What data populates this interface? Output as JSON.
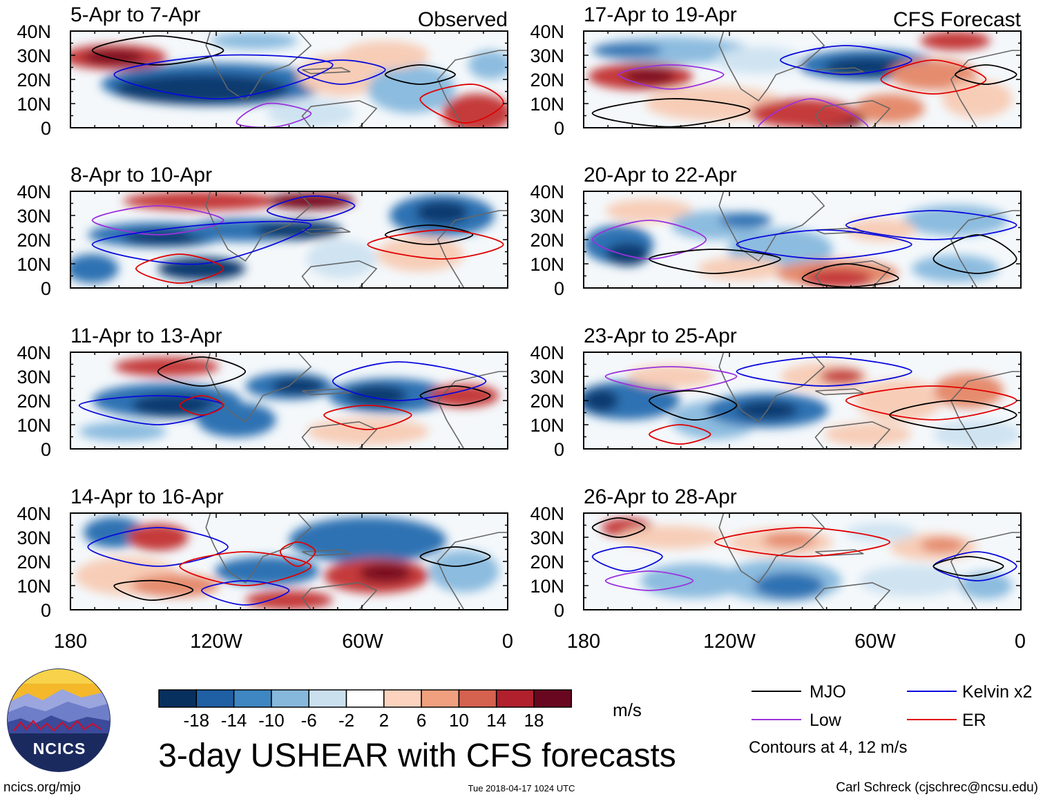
{
  "figure": {
    "title": "3-day USHEAR with CFS forecasts",
    "website": "ncics.org/mjo",
    "timestamp": "Tue 2018-04-17 1024 UTC",
    "credit": "Carl Schreck (cjschrec@ncsu.edu)"
  },
  "logo": {
    "text": "NCICS"
  },
  "columns": [
    {
      "label": "Observed"
    },
    {
      "label": "CFS Forecast"
    }
  ],
  "panels": [
    {
      "col": 0,
      "row": 0,
      "date_range": "5-Apr to 7-Apr"
    },
    {
      "col": 0,
      "row": 1,
      "date_range": "8-Apr to 10-Apr"
    },
    {
      "col": 0,
      "row": 2,
      "date_range": "11-Apr to 13-Apr"
    },
    {
      "col": 0,
      "row": 3,
      "date_range": "14-Apr to 16-Apr"
    },
    {
      "col": 1,
      "row": 0,
      "date_range": "17-Apr to 19-Apr"
    },
    {
      "col": 1,
      "row": 1,
      "date_range": "20-Apr to 22-Apr"
    },
    {
      "col": 1,
      "row": 2,
      "date_range": "23-Apr to 25-Apr"
    },
    {
      "col": 1,
      "row": 3,
      "date_range": "26-Apr to 28-Apr"
    }
  ],
  "axes": {
    "lat_ticks": [
      "40N",
      "30N",
      "20N",
      "10N",
      "0"
    ],
    "lon_ticks": [
      "180",
      "120W",
      "60W",
      "0"
    ]
  },
  "colorbar": {
    "unit": "m/s",
    "tick_labels": [
      "-18",
      "-14",
      "-10",
      "-6",
      "-2",
      "2",
      "6",
      "10",
      "14",
      "18"
    ],
    "colors": [
      "#08305e",
      "#1f5fa3",
      "#3f87c2",
      "#86b8dc",
      "#cbe0ef",
      "#ffffff",
      "#fbd3be",
      "#f0a07e",
      "#d5614f",
      "#b0202d",
      "#6a0720"
    ]
  },
  "legend": {
    "entries": [
      {
        "label": "MJO",
        "color": "#000000"
      },
      {
        "label": "Kelvin x2",
        "color": "#0a0adc"
      },
      {
        "label": "Low",
        "color": "#9a32dc"
      },
      {
        "label": "ER",
        "color": "#e00000"
      }
    ],
    "note": "Contours at 4, 12 m/s"
  }
}
